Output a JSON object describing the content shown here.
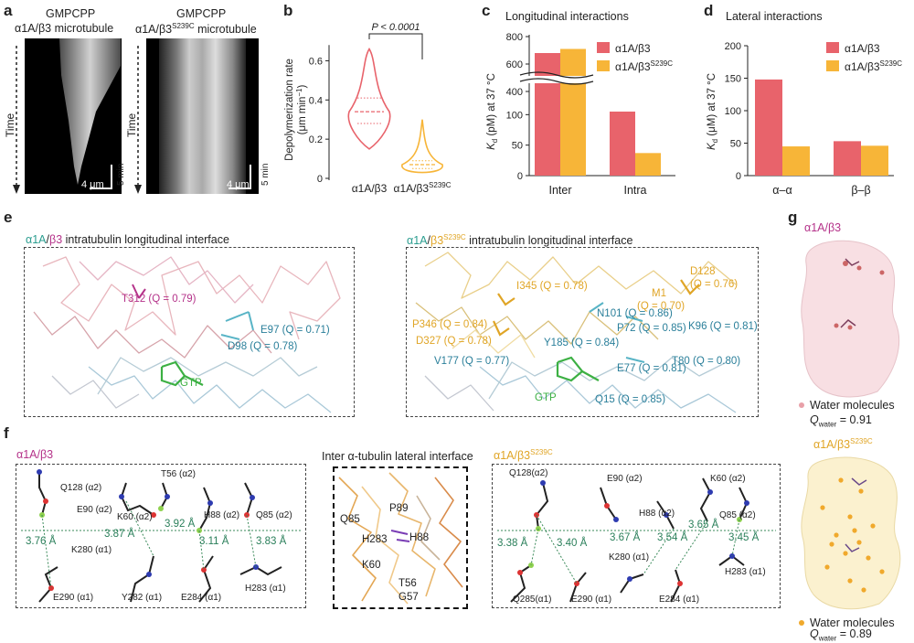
{
  "panels": {
    "a": "a",
    "b": "b",
    "c": "c",
    "d": "d",
    "e": "e",
    "f": "f",
    "g": "g"
  },
  "panel_a": {
    "left_title_1": "GMPCPP",
    "left_title_2": "α1A/β3 microtubule",
    "right_title_1": "GMPCPP",
    "right_title_2a": "α1A/β3",
    "right_title_sup": "S239C",
    "right_title_2b": " microtubule",
    "time_label": "Time",
    "scale_x": "4 μm",
    "scale_y": "5 min"
  },
  "panel_e": {
    "left_title_a": "α1A",
    "left_title_sep": "/",
    "left_title_b": "β3",
    "left_title_rest": " intratubulin longitudinal interface",
    "right_title_a": "α1A",
    "right_title_sep": "/",
    "right_title_b": "β3",
    "right_title_sup": "S239C",
    "right_title_rest": " intratubulin longitudinal interface",
    "left_labels": {
      "t312": "T312 (Q = 0.79)",
      "e97": "E97 (Q = 0.71)",
      "d98": "D98 (Q = 0.78)",
      "gtp": "GTP"
    },
    "right_labels": {
      "i345": "I345 (Q = 0.78)",
      "d128": "D128",
      "d128q": "(Q = 0.76)",
      "m1": "M1",
      "m1q": "(Q = 0.70)",
      "n101": "N101 (Q = 0.86)",
      "p346": "P346 (Q = 0.84)",
      "p72": "P72 (Q = 0.85)",
      "k96": "K96 (Q = 0.81)",
      "d327": "D327 (Q = 0.78)",
      "y185": "Y185 (Q = 0.84)",
      "v177": "V177 (Q = 0.77)",
      "e77": "E77 (Q = 0.81)",
      "t80": "T80 (Q = 0.80)",
      "gtp": "GTP",
      "q15": "Q15 (Q = 0.85)"
    }
  },
  "panel_f": {
    "left_title": "α1A/β3",
    "center_title": "Inter α-tubulin lateral interface",
    "right_title_a": "α1A/β3",
    "right_title_sup": "S239C",
    "left_residues": {
      "q128": "Q128 (α2)",
      "t56": "T56 (α2)",
      "e90": "E90 (α2)",
      "k60": "K60 (α2)",
      "h88": "H88 (α2)",
      "q85": "Q85 (α2)",
      "k280": "K280 (α1)",
      "e290": "E290 (α1)",
      "y282": "Y282 (α1)",
      "e284": "E284 (α1)",
      "h283": "H283 (α1)"
    },
    "left_distances": {
      "d1": "3.92 Å",
      "d2": "3.87 Å",
      "d3": "3.76 Å",
      "d4": "3.11 Å",
      "d5": "3.83 Å"
    },
    "center_residues": {
      "p89": "P89",
      "q85": "Q85",
      "h283": "H283",
      "h88": "H88",
      "k60": "K60",
      "t56": "T56",
      "g57": "G57"
    },
    "right_residues": {
      "q128": "Q128(α2)",
      "e90": "E90 (α2)",
      "k60": "K60 (α2)",
      "h88": "H88 (α2)",
      "q85": "Q85 (α2)",
      "k280": "K280 (α1)",
      "h283": "H283 (α1)",
      "q285": "Q285(α1)",
      "e290": "E290 (α1)",
      "e284": "E284 (α1)"
    },
    "right_distances": {
      "d1": "3.38 Å",
      "d2": "3.40 Å",
      "d3": "3.67 Å",
      "d4": "3.54 Å",
      "d5": "3.65 Å",
      "d6": "3.45 Å"
    }
  },
  "panel_g": {
    "top_title": "α1A/β3",
    "top_legend": "Water molecules",
    "top_q_prefix": "Q",
    "top_q_sub": "water",
    "top_q_value": " = 0.91",
    "bottom_title_a": "α1A/β3",
    "bottom_title_sup": "S239C",
    "bottom_legend": "Water molecules",
    "bottom_q_prefix": "Q",
    "bottom_q_sub": "water",
    "bottom_q_value": " = 0.89"
  },
  "colors": {
    "alpha1a": "#2a9d8f",
    "beta3": "#b5338a",
    "mutant": "#e0a526",
    "bar_red": "#e8636b",
    "bar_orange": "#f7b538",
    "gtp": "#3cb043",
    "bond_blue": "#3d8bbd"
  },
  "chart_data": [
    {
      "panel": "b",
      "type": "violin",
      "categories": [
        "α1A/β3",
        "α1A/β3S239C"
      ],
      "category_labels": [
        {
          "main": "α1A/β3",
          "sup": ""
        },
        {
          "main": "α1A/β3",
          "sup": "S239C"
        }
      ],
      "ylabel": "Depolymerization rate",
      "ylabel2": "(μm min",
      "ylabel2_sup": "−1",
      "ylabel2_end": ")",
      "ylim": [
        0,
        0.7
      ],
      "yticks": [
        "0",
        "0.2",
        "0.4",
        "0.6"
      ],
      "series": [
        {
          "name": "α1A/β3",
          "median": 0.34,
          "q1": 0.28,
          "q3": 0.41,
          "min": 0.15,
          "max": 0.66,
          "color": "#e8636b"
        },
        {
          "name": "α1A/β3S239C",
          "median": 0.07,
          "q1": 0.05,
          "q3": 0.09,
          "min": 0.03,
          "max": 0.3,
          "color": "#f7b538"
        }
      ],
      "annotation": "P < 0.0001"
    },
    {
      "panel": "c",
      "type": "bar",
      "title": "Longitudinal interactions",
      "categories": [
        "Inter",
        "Intra"
      ],
      "ylabel": "K",
      "ylabel_sub": "d",
      "ylabel_rest": " (pM) at 37 °C",
      "yticks_lower": [
        "0",
        "50",
        "100"
      ],
      "yticks_upper": [
        "400",
        "600",
        "800"
      ],
      "axis_break": [
        150,
        400
      ],
      "series": [
        {
          "name": "α1A/β3",
          "values": [
            680,
            105
          ],
          "color": "#e8636b"
        },
        {
          "name": "α1A/β3S239C",
          "values": [
            710,
            37
          ],
          "color": "#f7b538"
        }
      ],
      "legend": [
        {
          "main": "α1A/β3",
          "sup": ""
        },
        {
          "main": "α1A/β3",
          "sup": "S239C"
        }
      ]
    },
    {
      "panel": "d",
      "type": "bar",
      "title": "Lateral interactions",
      "categories": [
        "α–α",
        "β–β"
      ],
      "ylabel": "K",
      "ylabel_sub": "d",
      "ylabel_rest": " (μM) at 37 °C",
      "ylim": [
        0,
        200
      ],
      "yticks": [
        "0",
        "50",
        "100",
        "150",
        "200"
      ],
      "series": [
        {
          "name": "α1A/β3",
          "values": [
            148,
            53
          ],
          "color": "#e8636b"
        },
        {
          "name": "α1A/β3S239C",
          "values": [
            45,
            46
          ],
          "color": "#f7b538"
        }
      ],
      "legend": [
        {
          "main": "α1A/β3",
          "sup": ""
        },
        {
          "main": "α1A/β3",
          "sup": "S239C"
        }
      ]
    }
  ]
}
